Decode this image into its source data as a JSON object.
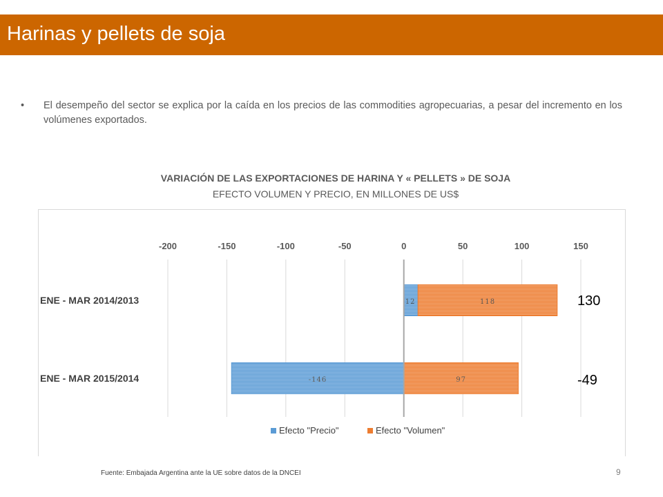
{
  "header": {
    "title": "Harinas y pellets de soja"
  },
  "bullet": {
    "marker": "•",
    "text": "El desempeño del sector se explica por la caída en los precios de las commodities agropecuarias, a pesar del incremento en los volúmenes exportados."
  },
  "chart_data": {
    "type": "bar",
    "orientation": "horizontal",
    "stacked": true,
    "title": "VARIACIÓN DE LAS EXPORTACIONES DE HARINA Y « PELLETS » DE SOJA",
    "subtitle": "EFECTO VOLUMEN Y PRECIO, EN MILLONES DE US$",
    "categories": [
      "ENE - MAR 2014/2013",
      "ENE - MAR 2015/2014"
    ],
    "series": [
      {
        "name": "Efecto \"Precio\"",
        "values": [
          12,
          -146
        ],
        "color": "#5b9bd5"
      },
      {
        "name": "Efecto \"Volumen\"",
        "values": [
          118,
          97
        ],
        "color": "#ed7d31"
      }
    ],
    "data_labels": [
      [
        "12",
        "118"
      ],
      [
        "-146",
        "97"
      ]
    ],
    "totals": [
      "130",
      "-49"
    ],
    "xlim": [
      -200,
      150
    ],
    "xticks": [
      -200,
      -150,
      -100,
      -50,
      0,
      50,
      100,
      150
    ],
    "grid": true,
    "axis_position": "top",
    "legend": "bottom"
  },
  "footer": {
    "source": "Fuente: Embajada Argentina ante la UE sobre datos de la DNCEI",
    "page": "9"
  }
}
